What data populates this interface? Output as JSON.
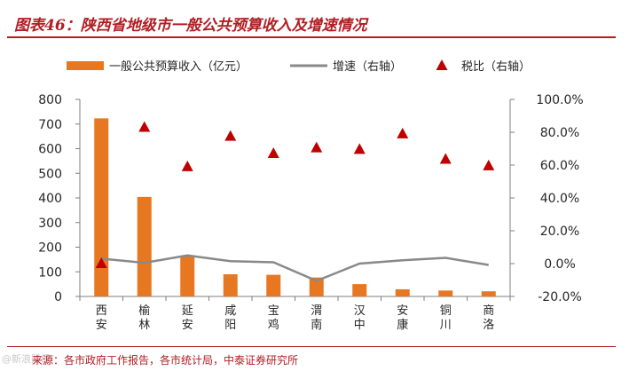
{
  "header": {
    "title": "图表46：陕西省地级市一般公共预算收入及增速情况"
  },
  "footer": {
    "source": "来源：各市政府工作报告，各市统计局，中泰证券研究所",
    "watermark": "@新浪财经"
  },
  "colors": {
    "bar": "#e87722",
    "line": "#898989",
    "marker": "#c00000",
    "accent": "#b01e23"
  },
  "chart_data": {
    "type": "bar",
    "title": "",
    "categories": [
      "西安",
      "榆林",
      "延安",
      "咸阳",
      "宝鸡",
      "渭南",
      "汉中",
      "安康",
      "铜川",
      "商洛"
    ],
    "series": [
      {
        "name": "一般公共预算收入（亿元）",
        "type": "bar",
        "axis": "left",
        "values": [
          723,
          404,
          163,
          90,
          88,
          77,
          50,
          29,
          24,
          21
        ]
      },
      {
        "name": "增速（右轴）",
        "type": "line",
        "axis": "right",
        "values": [
          3.0,
          0.5,
          5.0,
          1.5,
          0.8,
          -10.5,
          0.0,
          2.0,
          3.5,
          -0.8
        ]
      },
      {
        "name": "税比（右轴）",
        "type": "scatter",
        "marker": "triangle",
        "axis": "right",
        "values": [
          0.0,
          83.0,
          59.0,
          77.5,
          67.0,
          70.5,
          69.5,
          79.0,
          63.5,
          59.5
        ]
      }
    ],
    "left_axis": {
      "range": [
        0,
        800
      ],
      "ticks": [
        "0",
        "100",
        "200",
        "300",
        "400",
        "500",
        "600",
        "700",
        "800"
      ]
    },
    "right_axis": {
      "range": [
        -20,
        100
      ],
      "ticks": [
        "-20.0%",
        "0.0%",
        "20.0%",
        "40.0%",
        "60.0%",
        "80.0%",
        "100.0%"
      ]
    },
    "grid": false,
    "legend": "top"
  }
}
